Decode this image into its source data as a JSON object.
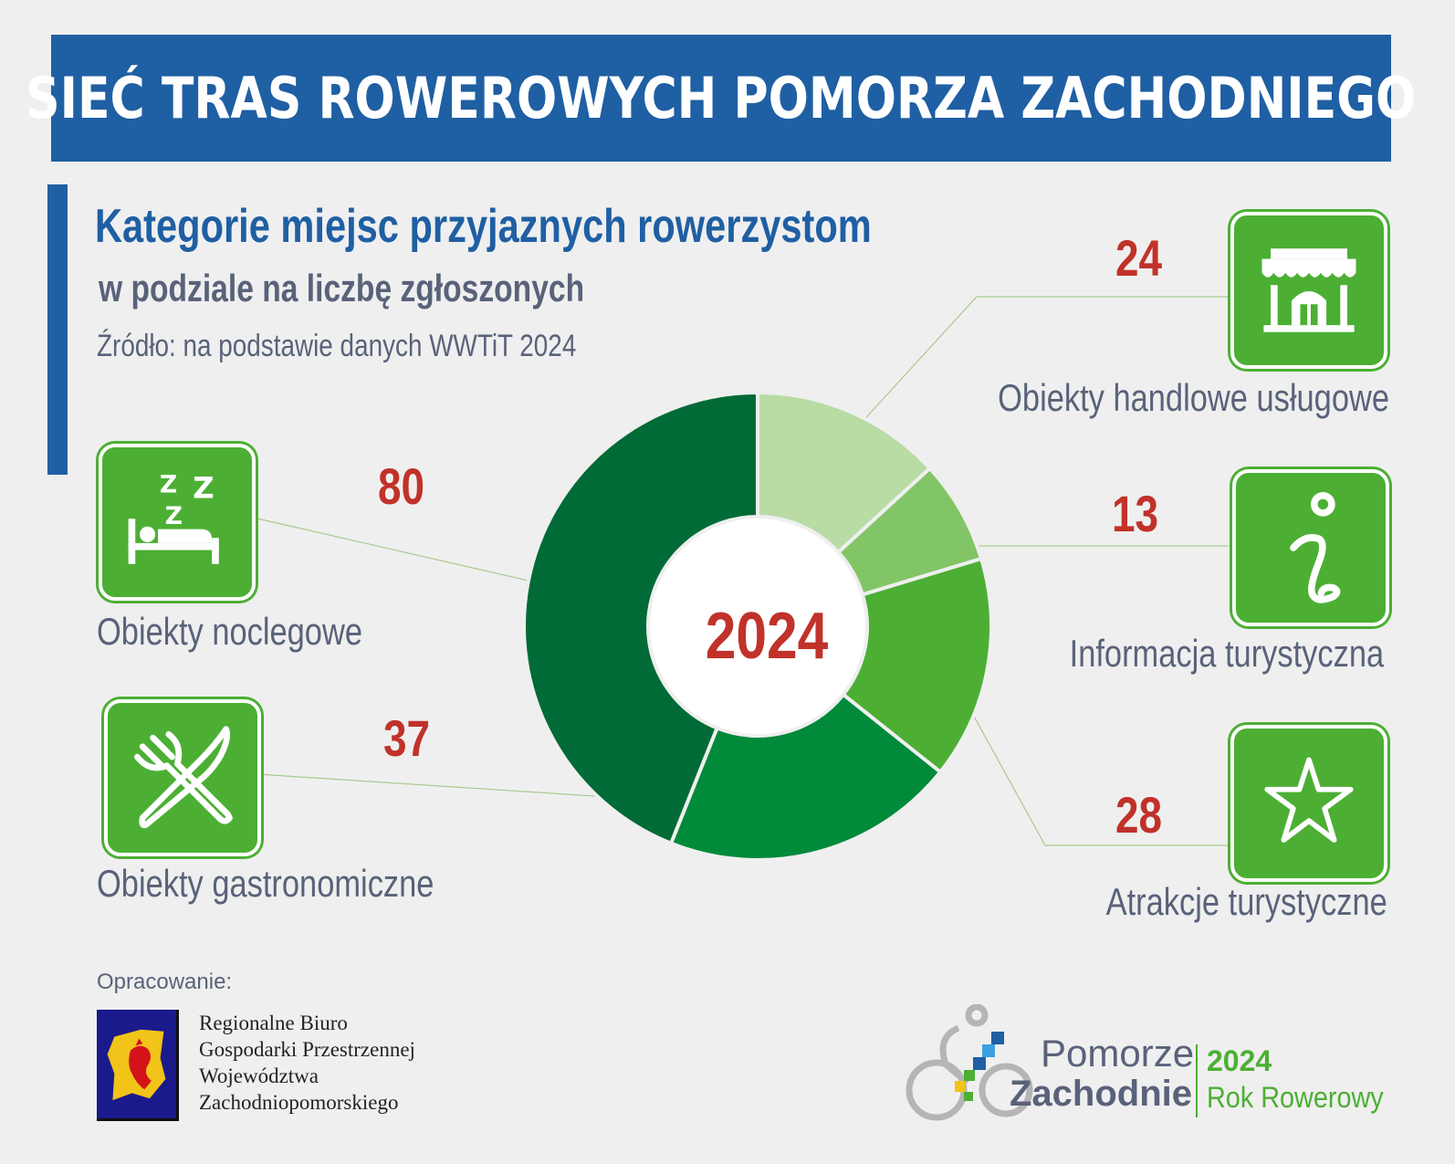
{
  "banner": {
    "title": "SIEĆ TRAS ROWEROWYCH POMORZA ZACHODNIEGO"
  },
  "heading": {
    "title": "Kategorie miejsc przyjaznych rowerzystom",
    "subtitle": "w podziale na liczbę zgłoszonych",
    "source": "Źródło: na podstawie danych WWTiT 2024"
  },
  "chart_data": {
    "type": "pie",
    "variant": "donut",
    "center_label": "2024",
    "categories": [
      "Obiekty handlowe usługowe",
      "Informacja turystyczna",
      "Atrakcje turystyczne",
      "Obiekty gastronomiczne",
      "Obiekty noclegowe"
    ],
    "values": [
      24,
      13,
      28,
      37,
      80
    ],
    "colors": [
      "#b8dca4",
      "#82c566",
      "#4caf34",
      "#008a3a",
      "#006b36"
    ],
    "icons": [
      "shop-icon",
      "info-icon",
      "star-icon",
      "cutlery-icon",
      "bed-icon"
    ],
    "label_color": "#c0322a",
    "legend": "around"
  },
  "footer": {
    "label": "Opracowanie:",
    "org_lines": [
      "Regionalne Biuro",
      "Gospodarki Przestrzennej",
      "Województwa",
      "Zachodniopomorskiego"
    ]
  },
  "logo": {
    "line1": "Pomorze",
    "line2": "Zachodnie",
    "year": "2024",
    "tagline": "Rok Rowerowy"
  }
}
